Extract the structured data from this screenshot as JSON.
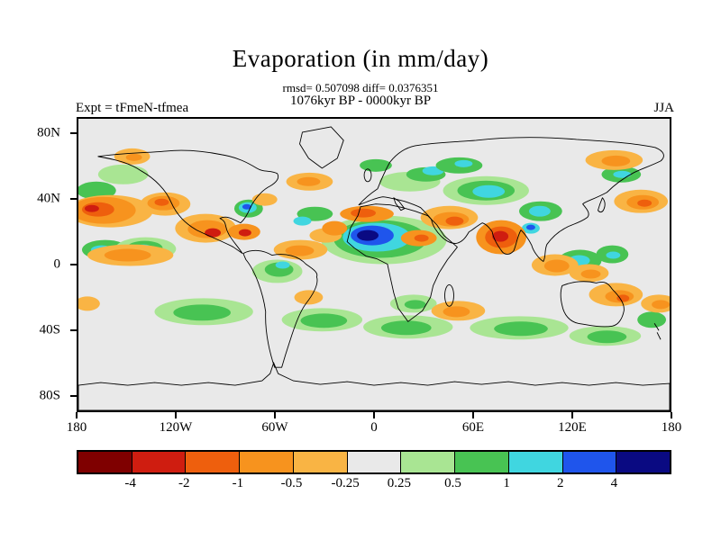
{
  "header": {
    "title": "Evaporation (in mm/day)",
    "stats_line": "rmsd= 0.507098 diff= 0.0376351",
    "period_line": "1076kyr BP - 0000kyr BP",
    "experiment_label": "Expt = tFmeN-tfmea",
    "season_label": "JJA"
  },
  "axes": {
    "x_ticks": [
      "180",
      "120W",
      "60W",
      "0",
      "60E",
      "120E",
      "180"
    ],
    "y_ticks": [
      "80N",
      "40N",
      "0",
      "40S",
      "80S"
    ]
  },
  "colorbar": {
    "colors": [
      "#7f0000",
      "#cf1d10",
      "#ee5f0d",
      "#f7931e",
      "#f9b444",
      "#e9e9e9",
      "#a9e593",
      "#48c353",
      "#40d6e0",
      "#1f55ec",
      "#0a0a82"
    ],
    "tick_labels": [
      "-4",
      "-2",
      "-1",
      "-0.5",
      "-0.25",
      "0.25",
      "0.5",
      "1",
      "2",
      "4"
    ]
  },
  "chart_data": {
    "type": "heatmap",
    "title": "Evaporation (in mm/day)",
    "rmsd": 0.507098,
    "diff": 0.0376351,
    "period": "1076kyr BP - 0000kyr BP",
    "experiment": "tFmeN-tfmea",
    "season": "JJA",
    "units": "mm/day",
    "projection": "equirectangular world map, longitude 180W to 180E, latitude 90S to 90N",
    "contour_levels": [
      -4,
      -2,
      -1,
      -0.5,
      -0.25,
      0.25,
      0.5,
      1,
      2,
      4
    ],
    "level_colors": [
      "#7f0000",
      "#cf1d10",
      "#ee5f0d",
      "#f7931e",
      "#f9b444",
      "#e9e9e9",
      "#a9e593",
      "#48c353",
      "#40d6e0",
      "#1f55ec",
      "#0a0a82"
    ],
    "neutral_band": "values between -0.25 and 0.25 shown as light gray",
    "pattern_summary": [
      {
        "region": "West Africa / Sahel (~0-20E wide, 8-22N)",
        "sign": "positive",
        "peak": "> 4 (dark blue core over blue/cyan/green rings)"
      },
      {
        "region": "India / Arabian Sea",
        "sign": "negative",
        "peak": "-2 to -4 (red core in large orange blob)"
      },
      {
        "region": "Caribbean / Central America / Mexico",
        "sign": "negative",
        "peak": "-2 to -4"
      },
      {
        "region": "Middle East / Arabian Peninsula",
        "sign": "negative",
        "peak": "-1 to -2"
      },
      {
        "region": "North Pacific western edge and 30-45N band",
        "sign": "negative",
        "peak": "-1 to -2"
      },
      {
        "region": "US east coast spot (~35N,75W)",
        "sign": "positive",
        "peak": "2 to 4 (small blue spot)"
      },
      {
        "region": "Central Asia and eastern Europe",
        "sign": "positive",
        "peak": "1 to 2 (cyan/green)"
      },
      {
        "region": "Southern mid-latitude oceans (20S-45S)",
        "sign": "mixed",
        "peak": "mostly +0.25 to +1 green bands with scattered -0.25 to -1 orange patches"
      },
      {
        "region": "Maritime continent / N Australia / Coral Sea",
        "sign": "mixed",
        "peak": "orange -0.5 to -1 with cyan +1 to +2 patches"
      },
      {
        "region": "NE Siberia / NW Pacific 40N",
        "sign": "negative",
        "peak": "-0.5 to -1"
      }
    ]
  }
}
